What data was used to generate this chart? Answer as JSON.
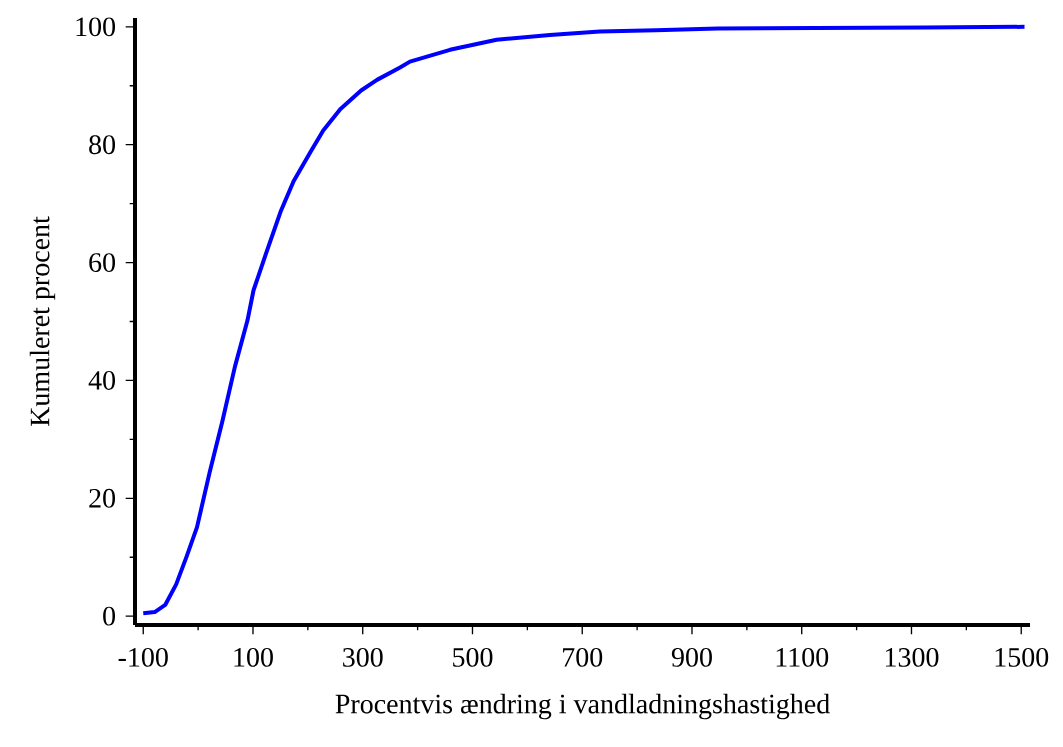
{
  "chart_data": {
    "type": "line",
    "xlabel": "Procentvis ændring i vandladningshastighed",
    "ylabel": "Kumuleret procent",
    "x": [
      -100,
      -79,
      -60,
      -40,
      -21,
      -2,
      21,
      44,
      67,
      90,
      101,
      124,
      151,
      174,
      205,
      228,
      259,
      297,
      326,
      368,
      386,
      459,
      544,
      641,
      732,
      834,
      947,
      1324,
      1506
    ],
    "values": [
      0.5,
      0.7,
      1.9,
      5.4,
      10.1,
      15.1,
      24.4,
      33,
      42.3,
      50.2,
      55.3,
      61.6,
      68.8,
      73.8,
      78.8,
      82.4,
      86,
      89.2,
      91,
      93.1,
      94.1,
      96.1,
      97.8,
      98.6,
      99.2,
      99.4,
      99.7,
      99.9,
      100
    ],
    "color": "#0000ff",
    "line_style": "solid",
    "xlim": [
      -115,
      1516
    ],
    "ylim": [
      -1.5,
      101.5
    ],
    "xticks": [
      -100,
      100,
      300,
      500,
      700,
      900,
      1100,
      1300,
      1500
    ],
    "yticks": [
      0,
      20,
      40,
      60,
      80,
      100
    ]
  }
}
